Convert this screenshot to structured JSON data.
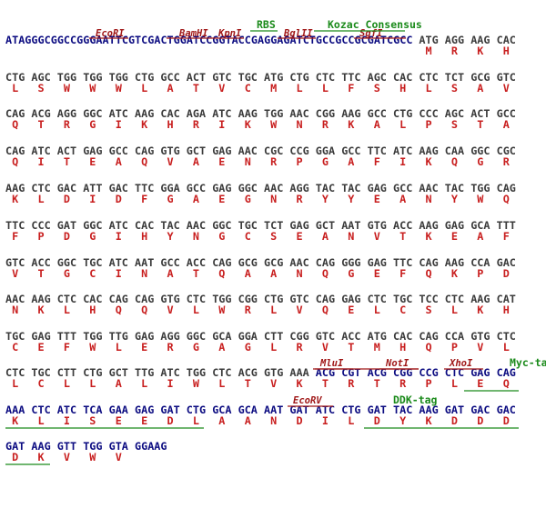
{
  "header": {
    "sequence": "ATAGGGCGGCCGGGAATTCGTCGACTGGATCCGGTACCGAGGAGATCTGCCGCCGCGATCGCC",
    "codons": [
      "ATG",
      "AGG",
      "AAG",
      "CAC"
    ],
    "aa": [
      "M",
      "R",
      "K",
      "H"
    ],
    "sites": [
      "EcoRI",
      "BamHI",
      "KpnI",
      "BglII",
      "SgfI"
    ],
    "features": [
      "RBS",
      "Kozac Consensus"
    ]
  },
  "rows": [
    {
      "codons": [
        "CTG",
        "AGC",
        "TGG",
        "TGG",
        "TGG",
        "CTG",
        "GCC",
        "ACT",
        "GTC",
        "TGC",
        "ATG",
        "CTG",
        "CTC",
        "TTC",
        "AGC",
        "CAC",
        "CTC",
        "TCT",
        "GCG",
        "GTC"
      ],
      "aa": [
        "L",
        "S",
        "W",
        "W",
        "W",
        "L",
        "A",
        "T",
        "V",
        "C",
        "M",
        "L",
        "L",
        "F",
        "S",
        "H",
        "L",
        "S",
        "A",
        "V"
      ]
    },
    {
      "codons": [
        "CAG",
        "ACG",
        "AGG",
        "GGC",
        "ATC",
        "AAG",
        "CAC",
        "AGA",
        "ATC",
        "AAG",
        "TGG",
        "AAC",
        "CGG",
        "AAG",
        "GCC",
        "CTG",
        "CCC",
        "AGC",
        "ACT",
        "GCC"
      ],
      "aa": [
        "Q",
        "T",
        "R",
        "G",
        "I",
        "K",
        "H",
        "R",
        "I",
        "K",
        "W",
        "N",
        "R",
        "K",
        "A",
        "L",
        "P",
        "S",
        "T",
        "A"
      ]
    },
    {
      "codons": [
        "CAG",
        "ATC",
        "ACT",
        "GAG",
        "GCC",
        "CAG",
        "GTG",
        "GCT",
        "GAG",
        "AAC",
        "CGC",
        "CCG",
        "GGA",
        "GCC",
        "TTC",
        "ATC",
        "AAG",
        "CAA",
        "GGC",
        "CGC"
      ],
      "aa": [
        "Q",
        "I",
        "T",
        "E",
        "A",
        "Q",
        "V",
        "A",
        "E",
        "N",
        "R",
        "P",
        "G",
        "A",
        "F",
        "I",
        "K",
        "Q",
        "G",
        "R"
      ]
    },
    {
      "codons": [
        "AAG",
        "CTC",
        "GAC",
        "ATT",
        "GAC",
        "TTC",
        "GGA",
        "GCC",
        "GAG",
        "GGC",
        "AAC",
        "AGG",
        "TAC",
        "TAC",
        "GAG",
        "GCC",
        "AAC",
        "TAC",
        "TGG",
        "CAG"
      ],
      "aa": [
        "K",
        "L",
        "D",
        "I",
        "D",
        "F",
        "G",
        "A",
        "E",
        "G",
        "N",
        "R",
        "Y",
        "Y",
        "E",
        "A",
        "N",
        "Y",
        "W",
        "Q"
      ]
    },
    {
      "codons": [
        "TTC",
        "CCC",
        "GAT",
        "GGC",
        "ATC",
        "CAC",
        "TAC",
        "AAC",
        "GGC",
        "TGC",
        "TCT",
        "GAG",
        "GCT",
        "AAT",
        "GTG",
        "ACC",
        "AAG",
        "GAG",
        "GCA",
        "TTT"
      ],
      "aa": [
        "F",
        "P",
        "D",
        "G",
        "I",
        "H",
        "Y",
        "N",
        "G",
        "C",
        "S",
        "E",
        "A",
        "N",
        "V",
        "T",
        "K",
        "E",
        "A",
        "F"
      ]
    },
    {
      "codons": [
        "GTC",
        "ACC",
        "GGC",
        "TGC",
        "ATC",
        "AAT",
        "GCC",
        "ACC",
        "CAG",
        "GCG",
        "GCG",
        "AAC",
        "CAG",
        "GGG",
        "GAG",
        "TTC",
        "CAG",
        "AAG",
        "CCA",
        "GAC"
      ],
      "aa": [
        "V",
        "T",
        "G",
        "C",
        "I",
        "N",
        "A",
        "T",
        "Q",
        "A",
        "A",
        "N",
        "Q",
        "G",
        "E",
        "F",
        "Q",
        "K",
        "P",
        "D"
      ]
    },
    {
      "codons": [
        "AAC",
        "AAG",
        "CTC",
        "CAC",
        "CAG",
        "CAG",
        "GTG",
        "CTC",
        "TGG",
        "CGG",
        "CTG",
        "GTC",
        "CAG",
        "GAG",
        "CTC",
        "TGC",
        "TCC",
        "CTC",
        "AAG",
        "CAT"
      ],
      "aa": [
        "N",
        "K",
        "L",
        "H",
        "Q",
        "Q",
        "V",
        "L",
        "W",
        "R",
        "L",
        "V",
        "Q",
        "E",
        "L",
        "C",
        "S",
        "L",
        "K",
        "H"
      ]
    },
    {
      "codons": [
        "TGC",
        "GAG",
        "TTT",
        "TGG",
        "TTG",
        "GAG",
        "AGG",
        "GGC",
        "GCA",
        "GGA",
        "CTT",
        "CGG",
        "GTC",
        "ACC",
        "ATG",
        "CAC",
        "CAG",
        "CCA",
        "GTG",
        "CTC"
      ],
      "aa": [
        "C",
        "E",
        "F",
        "W",
        "L",
        "E",
        "R",
        "G",
        "A",
        "G",
        "L",
        "R",
        "V",
        "T",
        "M",
        "H",
        "Q",
        "P",
        "V",
        "L"
      ]
    },
    {
      "codons": [
        "CTC",
        "TGC",
        "CTT",
        "CTG",
        "GCT",
        "TTG",
        "ATC",
        "TGG",
        "CTC",
        "ACG",
        "GTG",
        "AAA",
        "ACG",
        "CGT",
        "ACG",
        "CGG",
        "CCG",
        "CTC",
        "GAG",
        "CAG"
      ],
      "aa": [
        "L",
        "C",
        "L",
        "L",
        "A",
        "L",
        "I",
        "W",
        "L",
        "T",
        "V",
        "K",
        "T",
        "R",
        "T",
        "R",
        "P",
        "L",
        "E",
        "Q"
      ],
      "sites": [
        "MluI",
        "NotI",
        "XhoI"
      ],
      "features": [
        "Myc-tag"
      ]
    },
    {
      "codons": [
        "AAA",
        "CTC",
        "ATC",
        "TCA",
        "GAA",
        "GAG",
        "GAT",
        "CTG",
        "GCA",
        "GCA",
        "AAT",
        "GAT",
        "ATC",
        "CTG",
        "GAT",
        "TAC",
        "AAG",
        "GAT",
        "GAC",
        "GAC"
      ],
      "aa": [
        "K",
        "L",
        "I",
        "S",
        "E",
        "E",
        "D",
        "L",
        "A",
        "A",
        "N",
        "D",
        "I",
        "L",
        "D",
        "Y",
        "K",
        "D",
        "D",
        "D"
      ],
      "sites": [
        "EcoRV"
      ],
      "features": [
        "DDK-tag"
      ]
    },
    {
      "codons": [
        "GAT",
        "AAG",
        "GTT",
        "TGG",
        "GTA",
        "GGAAG"
      ],
      "aa": [
        "D",
        "K",
        "V",
        "W",
        "V"
      ]
    }
  ]
}
